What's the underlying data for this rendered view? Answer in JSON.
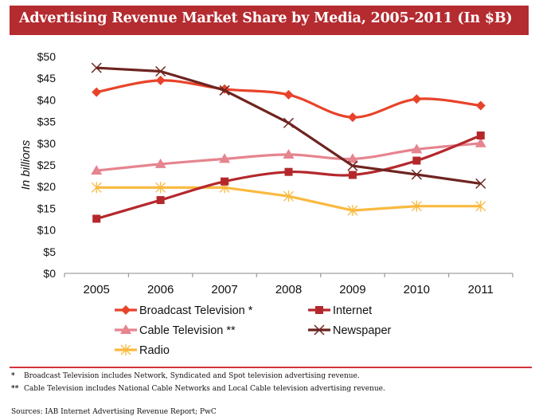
{
  "header": {
    "title": "Advertising Revenue Market Share by Media, 2005-2011 (In $B)"
  },
  "chart_data": {
    "type": "line",
    "title": "Advertising Revenue Market Share by Media, 2005-2011 (In $B)",
    "xlabel": "",
    "ylabel": "In billions",
    "x": [
      "2005",
      "2006",
      "2007",
      "2008",
      "2009",
      "2010",
      "2011"
    ],
    "ylim": [
      0,
      50
    ],
    "yticks": [
      0,
      5,
      10,
      15,
      20,
      25,
      30,
      35,
      40,
      45,
      50
    ],
    "ytick_labels": [
      "$0",
      "$5",
      "$10",
      "$15",
      "$20",
      "$25",
      "$30",
      "$35",
      "$40",
      "$45",
      "$50"
    ],
    "grid": false,
    "legend_position": "bottom",
    "series": [
      {
        "name": "Broadcast Television *",
        "color": "#e8432a",
        "marker": "diamond",
        "smooth": true,
        "values": [
          41.8,
          44.5,
          42.5,
          41.2,
          36.0,
          40.2,
          38.7
        ]
      },
      {
        "name": "Internet",
        "color": "#b4282c",
        "marker": "square",
        "smooth": true,
        "values": [
          12.6,
          16.9,
          21.2,
          23.4,
          22.7,
          26.0,
          31.8
        ]
      },
      {
        "name": "Cable Television **",
        "color": "#e6848f",
        "marker": "triangle",
        "smooth": true,
        "values": [
          23.7,
          25.2,
          26.4,
          27.4,
          26.4,
          28.6,
          30.0
        ]
      },
      {
        "name": "Newspaper",
        "color": "#6e2420",
        "marker": "x",
        "smooth": false,
        "values": [
          47.4,
          46.6,
          42.2,
          34.7,
          24.8,
          22.8,
          20.7
        ]
      },
      {
        "name": "Radio",
        "color": "#f9b93f",
        "marker": "star",
        "smooth": false,
        "values": [
          19.8,
          19.8,
          19.8,
          17.8,
          14.5,
          15.5,
          15.5
        ]
      }
    ]
  },
  "legend": {
    "items": [
      {
        "label": "Broadcast Television *"
      },
      {
        "label": "Internet"
      },
      {
        "label": "Cable Television **"
      },
      {
        "label": "Newspaper"
      },
      {
        "label": "Radio"
      }
    ]
  },
  "footnotes": [
    {
      "mark": "*",
      "text": "Broadcast Television includes Network, Syndicated and Spot television advertising revenue."
    },
    {
      "mark": "**",
      "text": "Cable Television includes National Cable Networks and Local Cable television advertising revenue."
    }
  ],
  "source": "Sources: IAB Internet Advertising Revenue Report; PwC"
}
